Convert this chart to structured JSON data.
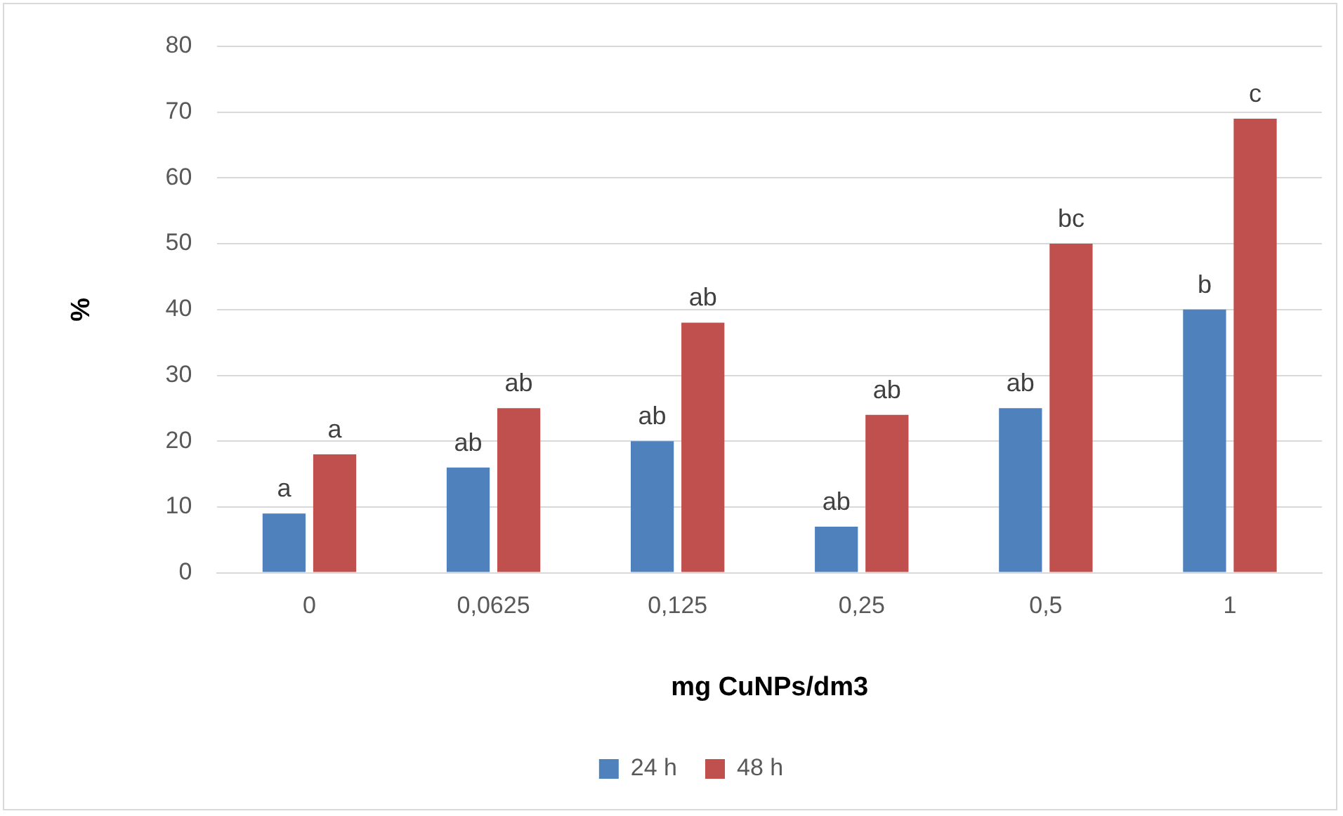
{
  "chart_data": {
    "type": "bar",
    "xlabel": "mg CuNPs/dm3",
    "ylabel": "%",
    "categories": [
      "0",
      "0,0625",
      "0,125",
      "0,25",
      "0,5",
      "1"
    ],
    "series": [
      {
        "name": "24 h",
        "color": "#4f81bd",
        "values": [
          9,
          16,
          20,
          7,
          25,
          40
        ],
        "value_labels": [
          "a",
          "ab",
          "ab",
          "ab",
          "ab",
          "b"
        ]
      },
      {
        "name": "48 h",
        "color": "#c0504d",
        "values": [
          18,
          25,
          38,
          24,
          50,
          69
        ],
        "value_labels": [
          "a",
          "ab",
          "ab",
          "ab",
          "bc",
          "c"
        ]
      }
    ],
    "ylim": [
      0,
      80
    ],
    "yticks": [
      0,
      10,
      20,
      30,
      40,
      50,
      60,
      70,
      80
    ],
    "grid": "y",
    "legend": "bottom"
  }
}
